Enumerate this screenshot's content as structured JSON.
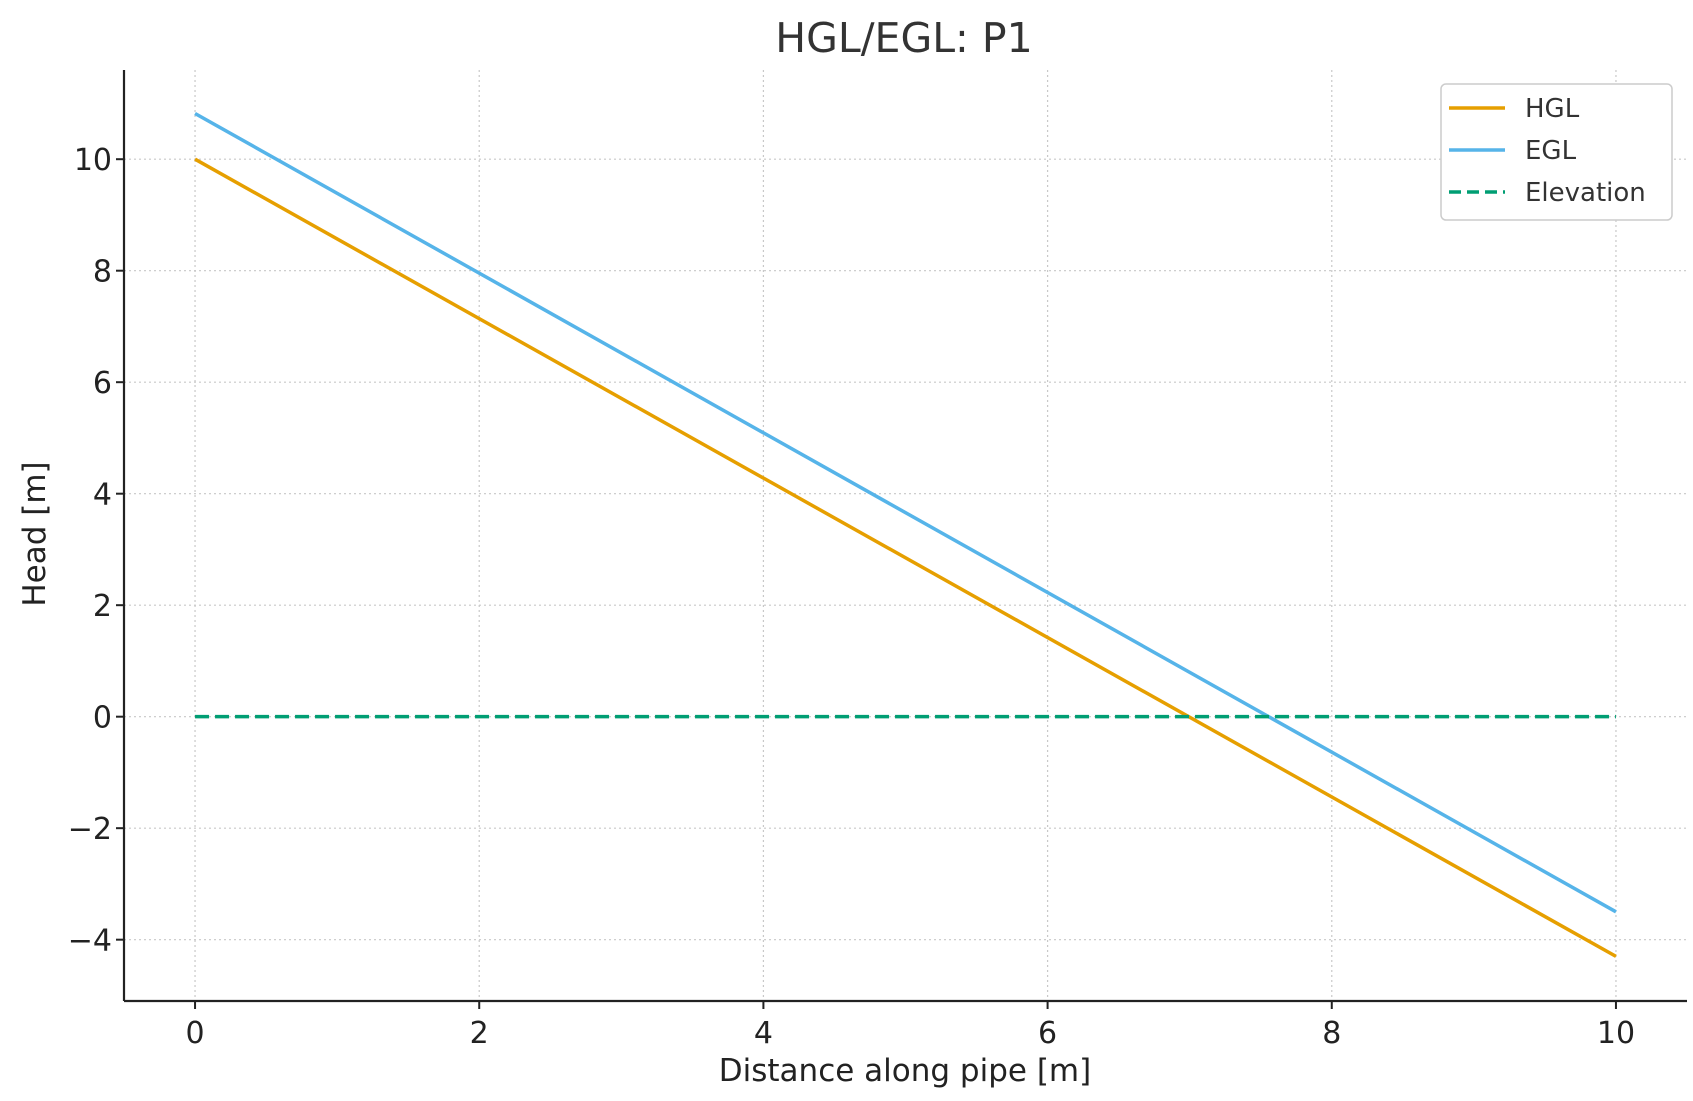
{
  "chart_data": {
    "type": "line",
    "title": "HGL/EGL: P1",
    "xlabel": "Distance along pipe [m]",
    "ylabel": "Head [m]",
    "xlim": [
      -0.5,
      10.5
    ],
    "ylim": [
      -5.1,
      11.6
    ],
    "xticks": [
      0,
      2,
      4,
      6,
      8,
      10
    ],
    "xtick_labels": [
      "0",
      "2",
      "4",
      "6",
      "8",
      "10"
    ],
    "yticks": [
      -4,
      -2,
      0,
      2,
      4,
      6,
      8,
      10
    ],
    "ytick_labels": [
      "−4",
      "−2",
      "0",
      "2",
      "4",
      "6",
      "8",
      "10"
    ],
    "grid": true,
    "legend_position": "top-right",
    "series": [
      {
        "name": "HGL",
        "x": [
          0,
          10
        ],
        "y": [
          10.0,
          -4.3
        ],
        "color": "#E69F00",
        "style": "solid"
      },
      {
        "name": "EGL",
        "x": [
          0,
          10
        ],
        "y": [
          10.82,
          -3.5
        ],
        "color": "#56B4E9",
        "style": "solid"
      },
      {
        "name": "Elevation",
        "x": [
          0,
          10
        ],
        "y": [
          0,
          0
        ],
        "color": "#009E73",
        "style": "dashed"
      }
    ]
  }
}
